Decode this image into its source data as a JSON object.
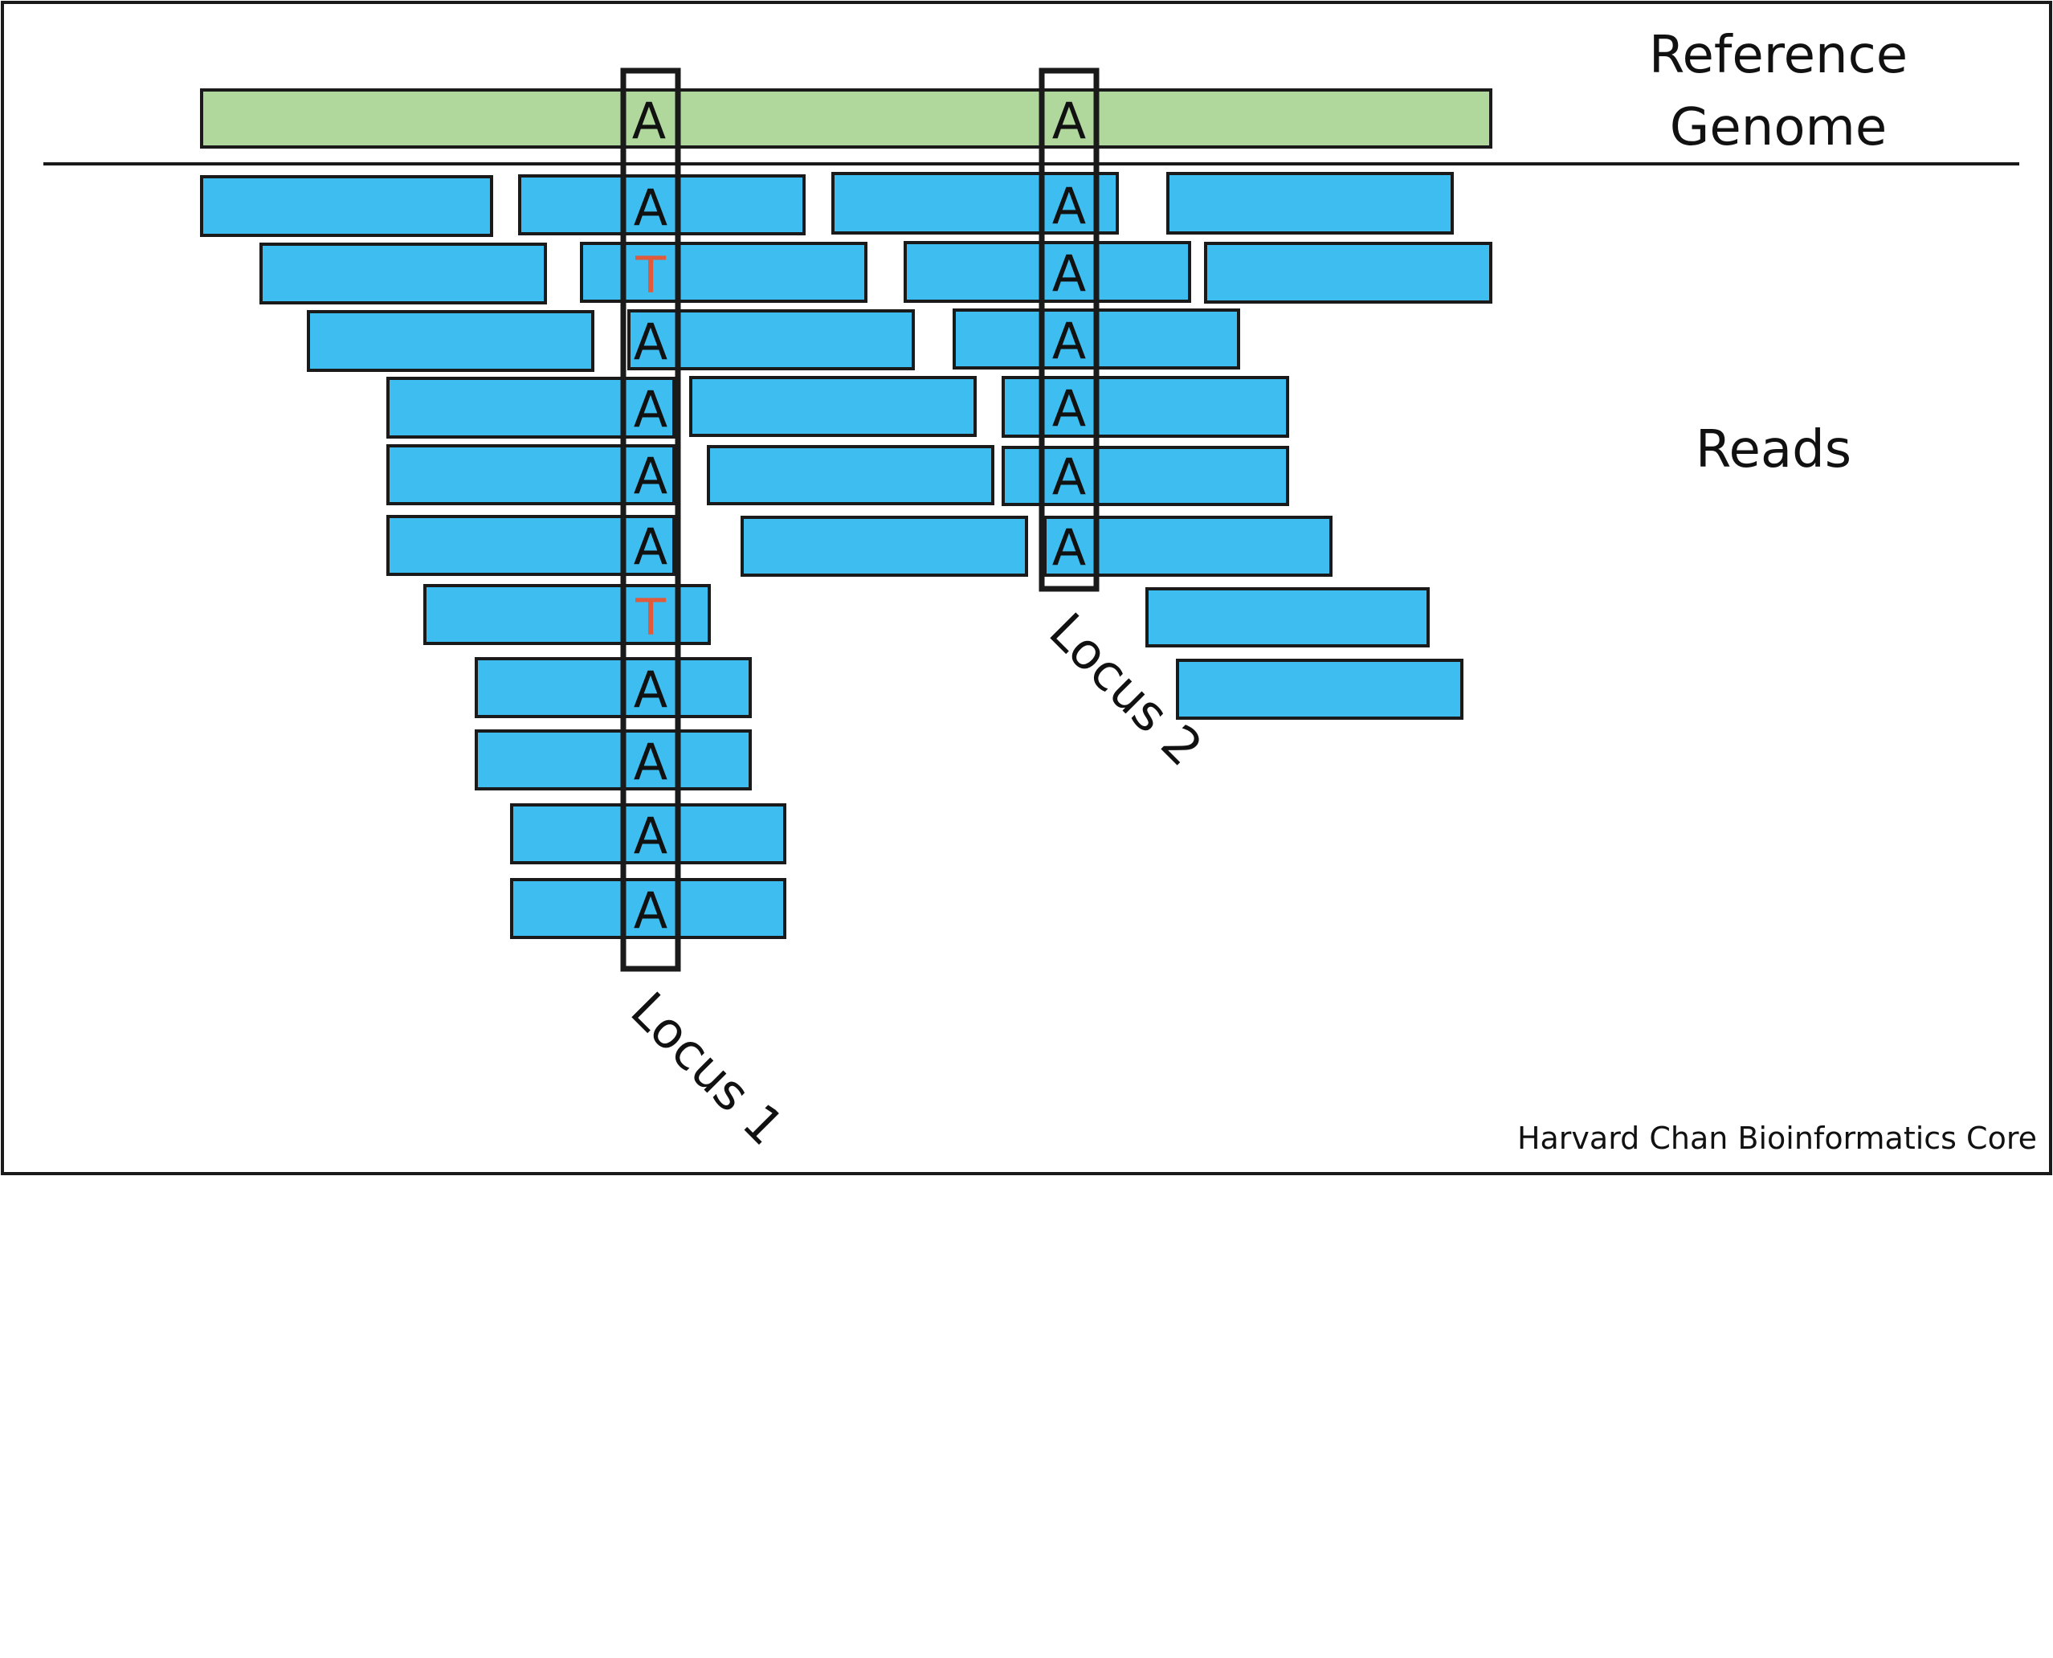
{
  "labels": {
    "reference_genome": [
      "Reference",
      "Genome"
    ],
    "reads": "Reads",
    "locus1": "Locus 1",
    "locus2": "Locus 2",
    "credit": "Harvard Chan Bioinformatics Core"
  },
  "colors": {
    "reference_fill": "#b0d89c",
    "read_fill": "#3ebef0",
    "outline": "#1a1a1a",
    "base": "#111111",
    "variant": "#e05a3c"
  },
  "reference_bases": [
    "A",
    "A"
  ],
  "locus1_bases": [
    "A",
    "T",
    "A",
    "A",
    "A",
    "A",
    "T",
    "A",
    "A",
    "A",
    "A"
  ],
  "locus2_bases": [
    "A",
    "A",
    "A",
    "A",
    "A",
    "A"
  ]
}
